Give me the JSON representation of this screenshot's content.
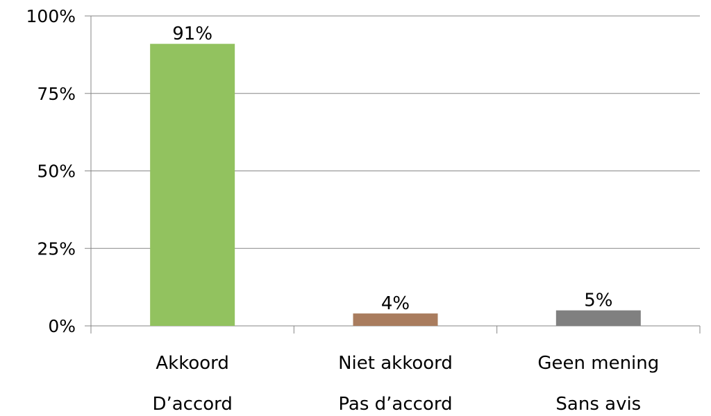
{
  "chart_data": {
    "type": "bar",
    "categories": [
      [
        "Akkoord",
        "D’accord"
      ],
      [
        "Niet akkoord",
        "Pas d’accord"
      ],
      [
        "Geen mening",
        "Sans avis"
      ]
    ],
    "values": [
      91,
      4,
      5
    ],
    "data_labels": [
      "91%",
      "4%",
      "5%"
    ],
    "bar_colors": [
      "#92C25F",
      "#A97C5E",
      "#808080"
    ],
    "ylim": [
      0,
      100
    ],
    "y_ticks": [
      0,
      25,
      50,
      75,
      100
    ],
    "y_tick_labels": [
      "0%",
      "25%",
      "50%",
      "75%",
      "100%"
    ],
    "grid": true,
    "grid_color": "#868686",
    "legend": "none",
    "title": "",
    "xlabel": "",
    "ylabel": ""
  }
}
